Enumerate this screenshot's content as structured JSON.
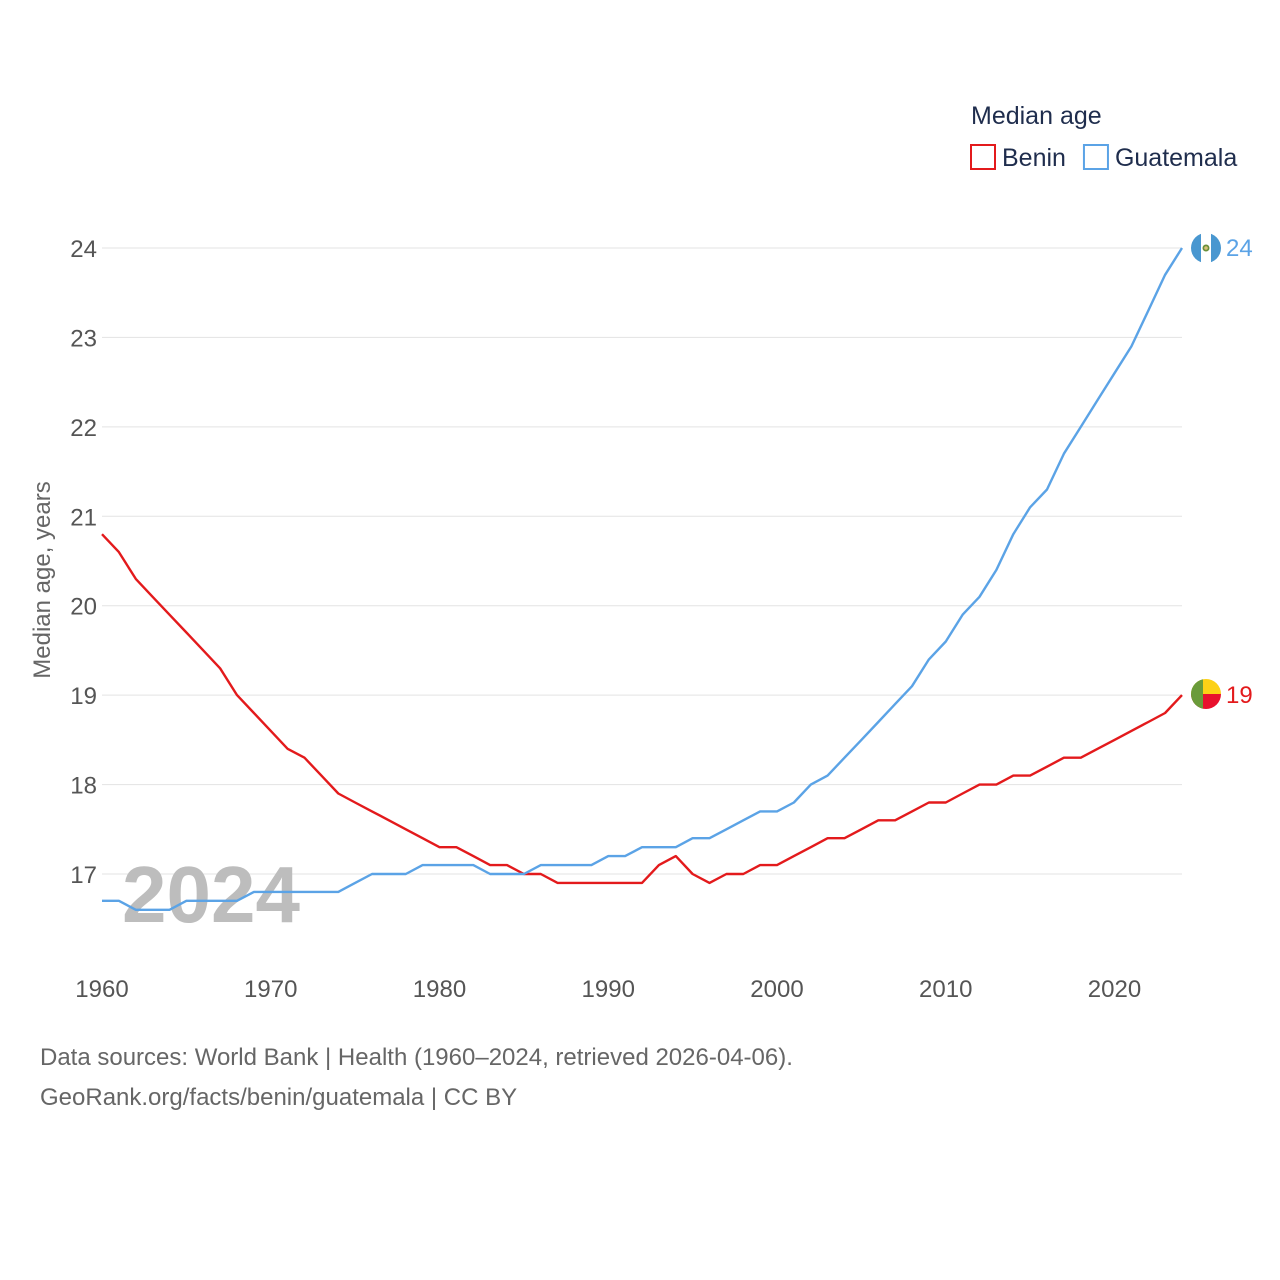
{
  "chart_data": {
    "type": "line",
    "title": "",
    "xlabel": "",
    "ylabel": "Median age, years",
    "xlim": [
      1960,
      2024
    ],
    "ylim": [
      16.1,
      24.4
    ],
    "x_ticks": [
      "1960",
      "1970",
      "1980",
      "1990",
      "2000",
      "2010",
      "2020"
    ],
    "y_ticks": [
      "17",
      "18",
      "19",
      "20",
      "21",
      "22",
      "23",
      "24"
    ],
    "grid": true,
    "legend": {
      "title": "Median age",
      "placement": "top-right"
    },
    "watermark_year": "2024",
    "x": [
      1960,
      1961,
      1962,
      1963,
      1964,
      1965,
      1966,
      1967,
      1968,
      1969,
      1970,
      1971,
      1972,
      1973,
      1974,
      1975,
      1976,
      1977,
      1978,
      1979,
      1980,
      1981,
      1982,
      1983,
      1984,
      1985,
      1986,
      1987,
      1988,
      1989,
      1990,
      1991,
      1992,
      1993,
      1994,
      1995,
      1996,
      1997,
      1998,
      1999,
      2000,
      2001,
      2002,
      2003,
      2004,
      2005,
      2006,
      2007,
      2008,
      2009,
      2010,
      2011,
      2012,
      2013,
      2014,
      2015,
      2016,
      2017,
      2018,
      2019,
      2020,
      2021,
      2022,
      2023,
      2024
    ],
    "series": [
      {
        "name": "Benin",
        "color": "#e31a1c",
        "end_label": "19",
        "values": [
          20.8,
          20.6,
          20.3,
          20.1,
          19.9,
          19.7,
          19.5,
          19.3,
          19.0,
          18.8,
          18.6,
          18.4,
          18.3,
          18.1,
          17.9,
          17.8,
          17.7,
          17.6,
          17.5,
          17.4,
          17.3,
          17.3,
          17.2,
          17.1,
          17.1,
          17.0,
          17.0,
          16.9,
          16.9,
          16.9,
          16.9,
          16.9,
          16.9,
          17.1,
          17.2,
          17.0,
          16.9,
          17.0,
          17.0,
          17.1,
          17.1,
          17.2,
          17.3,
          17.4,
          17.4,
          17.5,
          17.6,
          17.6,
          17.7,
          17.8,
          17.8,
          17.9,
          18.0,
          18.0,
          18.1,
          18.1,
          18.2,
          18.3,
          18.3,
          18.4,
          18.5,
          18.6,
          18.7,
          18.8,
          19.0
        ]
      },
      {
        "name": "Guatemala",
        "color": "#5ba3e6",
        "end_label": "24",
        "values": [
          16.7,
          16.7,
          16.6,
          16.6,
          16.6,
          16.7,
          16.7,
          16.7,
          16.7,
          16.8,
          16.8,
          16.8,
          16.8,
          16.8,
          16.8,
          16.9,
          17.0,
          17.0,
          17.0,
          17.1,
          17.1,
          17.1,
          17.1,
          17.0,
          17.0,
          17.0,
          17.1,
          17.1,
          17.1,
          17.1,
          17.2,
          17.2,
          17.3,
          17.3,
          17.3,
          17.4,
          17.4,
          17.5,
          17.6,
          17.7,
          17.7,
          17.8,
          18.0,
          18.1,
          18.3,
          18.5,
          18.7,
          18.9,
          19.1,
          19.4,
          19.6,
          19.9,
          20.1,
          20.4,
          20.8,
          21.1,
          21.3,
          21.7,
          22.0,
          22.3,
          22.6,
          22.9,
          23.3,
          23.7,
          24.0
        ]
      }
    ]
  },
  "footer": {
    "line1": "Data sources: World Bank | Health (1960–2024, retrieved 2026-04-06).",
    "line2": "GeoRank.org/facts/benin/guatemala | CC BY"
  }
}
